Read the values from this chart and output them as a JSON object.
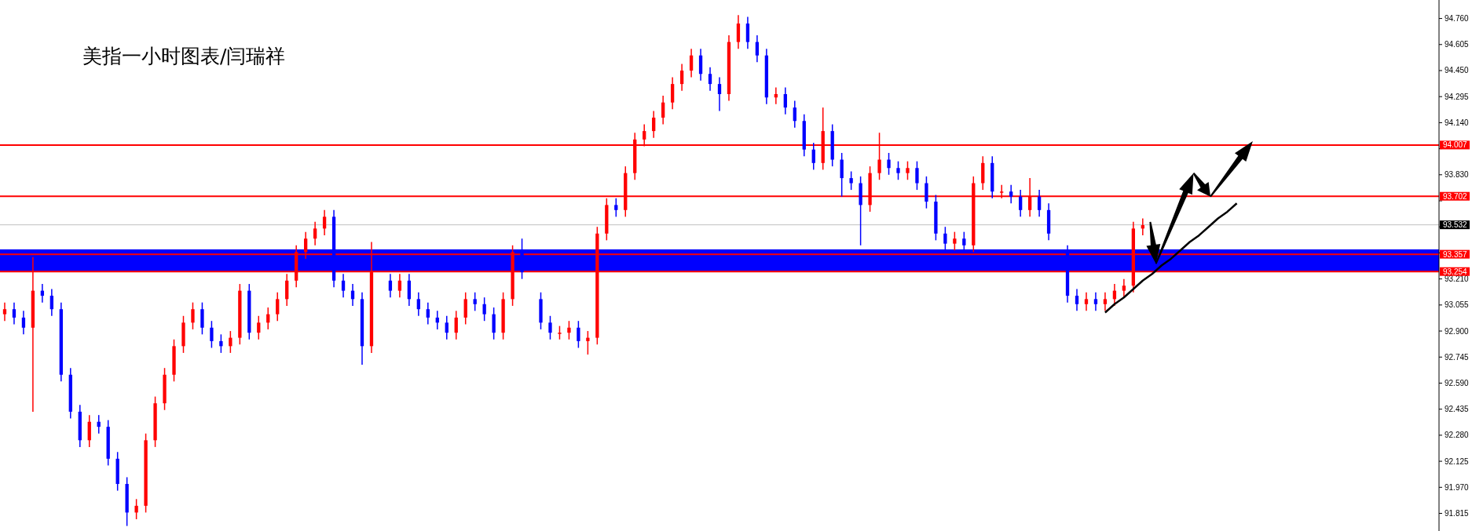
{
  "chart_data": {
    "type": "candlestick",
    "title": "美指一小时图表/闫瑞祥",
    "categories": [
      null,
      null,
      null,
      null,
      null,
      null,
      null,
      null,
      null,
      null,
      null,
      null,
      null,
      null,
      null,
      null,
      null,
      null,
      null,
      null,
      null,
      null,
      null,
      null,
      null,
      null,
      null,
      null,
      null,
      null,
      null,
      null,
      null,
      null,
      null,
      null,
      null,
      null,
      null,
      null,
      null,
      null,
      null,
      null,
      null,
      null,
      null,
      null,
      null,
      null,
      null,
      null,
      null,
      null,
      null,
      null,
      null,
      null,
      null,
      null,
      null,
      null,
      null,
      null,
      null,
      null,
      null,
      null,
      null,
      null,
      null,
      null,
      null,
      null,
      null,
      null,
      null,
      null,
      null,
      null,
      null,
      null,
      null,
      null,
      null,
      null,
      null,
      null,
      null,
      null,
      null,
      null,
      null,
      null,
      null,
      null,
      null,
      null,
      null,
      null,
      null,
      null,
      null,
      null,
      null,
      null,
      null,
      null,
      null,
      null,
      null,
      null,
      null,
      null,
      null,
      null,
      null,
      null,
      null,
      null,
      null,
      null,
      null,
      null,
      null,
      null,
      null,
      null,
      null,
      null,
      null,
      null,
      null,
      null,
      null,
      null,
      null,
      null,
      null,
      null,
      null,
      null,
      null,
      null,
      null,
      null,
      null,
      null,
      null,
      null,
      null,
      null,
      null
    ],
    "ohlc": [
      [
        93.0,
        93.07,
        92.96,
        93.03
      ],
      [
        93.03,
        93.07,
        92.94,
        92.98
      ],
      [
        92.98,
        93.02,
        92.88,
        92.92
      ],
      [
        92.92,
        93.34,
        92.42,
        93.14
      ],
      [
        93.14,
        93.18,
        93.07,
        93.11
      ],
      [
        93.11,
        93.15,
        92.99,
        93.03
      ],
      [
        93.03,
        93.07,
        92.6,
        92.64
      ],
      [
        92.64,
        92.68,
        92.38,
        92.42
      ],
      [
        92.42,
        92.46,
        92.21,
        92.25
      ],
      [
        92.25,
        92.4,
        92.21,
        92.36
      ],
      [
        92.36,
        92.4,
        92.29,
        92.33
      ],
      [
        92.33,
        92.37,
        92.1,
        92.14
      ],
      [
        92.14,
        92.18,
        91.95,
        91.99
      ],
      [
        91.99,
        92.03,
        91.74,
        91.82
      ],
      [
        91.82,
        91.9,
        91.78,
        91.86
      ],
      [
        91.86,
        92.29,
        91.82,
        92.25
      ],
      [
        92.25,
        92.51,
        92.21,
        92.47
      ],
      [
        92.47,
        92.68,
        92.43,
        92.64
      ],
      [
        92.64,
        92.85,
        92.6,
        92.81
      ],
      [
        92.81,
        92.99,
        92.77,
        92.95
      ],
      [
        92.95,
        93.07,
        92.91,
        93.03
      ],
      [
        93.03,
        93.07,
        92.88,
        92.92
      ],
      [
        92.92,
        92.96,
        92.8,
        92.84
      ],
      [
        92.84,
        92.88,
        92.77,
        92.81
      ],
      [
        92.81,
        92.9,
        92.77,
        92.86
      ],
      [
        92.86,
        93.18,
        92.82,
        93.14
      ],
      [
        93.14,
        93.18,
        92.85,
        92.89
      ],
      [
        92.89,
        92.99,
        92.85,
        92.95
      ],
      [
        92.95,
        93.04,
        92.91,
        93.0
      ],
      [
        93.0,
        93.13,
        92.96,
        93.09
      ],
      [
        93.09,
        93.24,
        93.05,
        93.2
      ],
      [
        93.2,
        93.41,
        93.16,
        93.37
      ],
      [
        93.37,
        93.49,
        93.33,
        93.45
      ],
      [
        93.45,
        93.55,
        93.41,
        93.51
      ],
      [
        93.51,
        93.62,
        93.47,
        93.58
      ],
      [
        93.58,
        93.62,
        93.16,
        93.2
      ],
      [
        93.2,
        93.24,
        93.1,
        93.14
      ],
      [
        93.14,
        93.18,
        93.05,
        93.09
      ],
      [
        93.09,
        93.13,
        92.7,
        92.81
      ],
      [
        92.81,
        93.43,
        92.77,
        93.25
      ],
      null,
      [
        93.2,
        93.24,
        93.1,
        93.14
      ],
      [
        93.14,
        93.24,
        93.1,
        93.2
      ],
      [
        93.2,
        93.24,
        93.05,
        93.09
      ],
      [
        93.09,
        93.13,
        92.99,
        93.03
      ],
      [
        93.03,
        93.07,
        92.94,
        92.98
      ],
      [
        92.98,
        93.02,
        92.91,
        92.95
      ],
      [
        92.95,
        92.99,
        92.85,
        92.89
      ],
      [
        92.89,
        93.02,
        92.85,
        92.98
      ],
      [
        92.98,
        93.13,
        92.94,
        93.09
      ],
      [
        93.09,
        93.13,
        93.02,
        93.06
      ],
      [
        93.06,
        93.1,
        92.96,
        93.0
      ],
      [
        93.0,
        93.04,
        92.85,
        92.89
      ],
      [
        92.89,
        93.13,
        92.85,
        93.09
      ],
      [
        93.09,
        93.41,
        93.05,
        93.37
      ],
      [
        93.37,
        93.45,
        93.21,
        93.25
      ],
      null,
      [
        93.09,
        93.13,
        92.91,
        92.95
      ],
      [
        92.95,
        92.99,
        92.85,
        92.89
      ],
      [
        92.89,
        92.93,
        92.85,
        92.89
      ],
      [
        92.89,
        92.96,
        92.85,
        92.92
      ],
      [
        92.92,
        92.96,
        92.8,
        92.84
      ],
      [
        92.84,
        92.9,
        92.76,
        92.86
      ],
      [
        92.86,
        93.52,
        92.82,
        93.48
      ],
      [
        93.48,
        93.69,
        93.44,
        93.65
      ],
      [
        93.65,
        93.69,
        93.58,
        93.62
      ],
      [
        93.62,
        93.88,
        93.58,
        93.84
      ],
      [
        93.84,
        94.08,
        93.8,
        94.04
      ],
      [
        94.04,
        94.13,
        94.0,
        94.09
      ],
      [
        94.09,
        94.21,
        94.05,
        94.17
      ],
      [
        94.17,
        94.3,
        94.13,
        94.26
      ],
      [
        94.26,
        94.41,
        94.22,
        94.37
      ],
      [
        94.37,
        94.49,
        94.33,
        94.45
      ],
      [
        94.45,
        94.58,
        94.41,
        94.54
      ],
      [
        94.54,
        94.58,
        94.39,
        94.43
      ],
      [
        94.43,
        94.47,
        94.33,
        94.37
      ],
      [
        94.37,
        94.41,
        94.21,
        94.31
      ],
      [
        94.31,
        94.66,
        94.27,
        94.62
      ],
      [
        94.62,
        94.78,
        94.58,
        94.73
      ],
      [
        94.73,
        94.77,
        94.58,
        94.62
      ],
      [
        94.62,
        94.66,
        94.5,
        94.54
      ],
      [
        94.54,
        94.58,
        94.25,
        94.29
      ],
      [
        94.29,
        94.35,
        94.25,
        94.31
      ],
      [
        94.31,
        94.35,
        94.19,
        94.23
      ],
      [
        94.23,
        94.27,
        94.11,
        94.15
      ],
      [
        94.15,
        94.19,
        93.94,
        93.98
      ],
      [
        93.98,
        94.02,
        93.86,
        93.9
      ],
      [
        93.9,
        94.23,
        93.86,
        94.09
      ],
      [
        94.09,
        94.13,
        93.88,
        93.92
      ],
      [
        93.92,
        93.96,
        93.7,
        93.81
      ],
      [
        93.81,
        93.85,
        93.74,
        93.78
      ],
      [
        93.78,
        93.82,
        93.41,
        93.65
      ],
      [
        93.65,
        93.88,
        93.61,
        93.84
      ],
      [
        93.84,
        94.08,
        93.8,
        93.92
      ],
      [
        93.92,
        93.96,
        93.83,
        93.87
      ],
      [
        93.87,
        93.91,
        93.8,
        93.84
      ],
      [
        93.84,
        93.91,
        93.8,
        93.87
      ],
      [
        93.87,
        93.91,
        93.74,
        93.78
      ],
      [
        93.78,
        93.82,
        93.63,
        93.67
      ],
      [
        93.67,
        93.71,
        93.44,
        93.48
      ],
      [
        93.48,
        93.52,
        93.38,
        93.42
      ],
      [
        93.42,
        93.49,
        93.38,
        93.45
      ],
      [
        93.45,
        93.49,
        93.37,
        93.41
      ],
      [
        93.41,
        93.82,
        93.37,
        93.78
      ],
      [
        93.78,
        93.94,
        93.74,
        93.9
      ],
      [
        93.9,
        93.94,
        93.69,
        93.73
      ],
      [
        93.73,
        93.77,
        93.69,
        93.73
      ],
      [
        93.73,
        93.77,
        93.66,
        93.7
      ],
      [
        93.7,
        93.74,
        93.58,
        93.62
      ],
      [
        93.62,
        93.81,
        93.58,
        93.7
      ],
      [
        93.7,
        93.74,
        93.58,
        93.62
      ],
      [
        93.62,
        93.66,
        93.44,
        93.48
      ],
      null,
      [
        93.37,
        93.41,
        93.07,
        93.11
      ],
      [
        93.11,
        93.15,
        93.02,
        93.06
      ],
      [
        93.06,
        93.13,
        93.02,
        93.09
      ],
      [
        93.09,
        93.13,
        93.02,
        93.06
      ],
      [
        93.06,
        93.13,
        93.02,
        93.09
      ],
      [
        93.09,
        93.18,
        93.05,
        93.14
      ],
      [
        93.14,
        93.21,
        93.1,
        93.17
      ],
      [
        93.17,
        93.55,
        93.13,
        93.51
      ],
      [
        93.51,
        93.57,
        93.47,
        93.53
      ],
      null,
      null,
      null,
      null,
      null,
      null,
      null,
      null,
      null,
      null,
      null,
      null,
      null,
      null,
      null,
      null,
      null,
      null,
      null,
      null,
      null,
      null,
      null,
      null,
      null,
      null,
      null,
      null,
      null,
      null,
      null
    ],
    "colors": [
      "#ff0000",
      "#0000ff",
      "#0000ff",
      "#ff0000",
      "#0000ff",
      "#0000ff",
      "#0000ff",
      "#0000ff",
      "#0000ff",
      "#ff0000",
      "#0000ff",
      "#0000ff",
      "#0000ff",
      "#0000ff",
      "#ff0000",
      "#ff0000",
      "#ff0000",
      "#ff0000",
      "#ff0000",
      "#ff0000",
      "#ff0000",
      "#0000ff",
      "#0000ff",
      "#0000ff",
      "#ff0000",
      "#ff0000",
      "#0000ff",
      "#ff0000",
      "#ff0000",
      "#ff0000",
      "#ff0000",
      "#ff0000",
      "#ff0000",
      "#ff0000",
      "#ff0000",
      "#0000ff",
      "#0000ff",
      "#0000ff",
      "#0000ff",
      "#ff0000",
      null,
      "#0000ff",
      "#ff0000",
      "#0000ff",
      "#0000ff",
      "#0000ff",
      "#0000ff",
      "#0000ff",
      "#ff0000",
      "#ff0000",
      "#0000ff",
      "#0000ff",
      "#0000ff",
      "#ff0000",
      "#ff0000",
      "#0000ff",
      null,
      "#0000ff",
      "#0000ff",
      "#ff0000",
      "#ff0000",
      "#0000ff",
      "#ff0000",
      "#ff0000",
      "#ff0000",
      "#0000ff",
      "#ff0000",
      "#ff0000",
      "#ff0000",
      "#ff0000",
      "#ff0000",
      "#ff0000",
      "#ff0000",
      "#ff0000",
      "#0000ff",
      "#0000ff",
      "#0000ff",
      "#ff0000",
      "#ff0000",
      "#0000ff",
      "#0000ff",
      "#0000ff",
      "#ff0000",
      "#0000ff",
      "#0000ff",
      "#0000ff",
      "#0000ff",
      "#ff0000",
      "#0000ff",
      "#0000ff",
      "#0000ff",
      "#0000ff",
      "#ff0000",
      "#ff0000",
      "#0000ff",
      "#0000ff",
      "#ff0000",
      "#0000ff",
      "#0000ff",
      "#0000ff",
      "#0000ff",
      "#ff0000",
      "#0000ff",
      "#ff0000",
      "#ff0000",
      "#0000ff",
      "#ff0000",
      "#0000ff",
      "#0000ff",
      "#ff0000",
      "#0000ff",
      "#0000ff",
      null,
      "#0000ff",
      "#0000ff",
      "#ff0000",
      "#0000ff",
      "#ff0000",
      "#ff0000",
      "#ff0000",
      "#ff0000",
      "#ff0000",
      null,
      null,
      null,
      null,
      null,
      null,
      null,
      null,
      null,
      null,
      null,
      null,
      null,
      null,
      null,
      null,
      null,
      null,
      null,
      null,
      null,
      null,
      null,
      null,
      null,
      null,
      null,
      null,
      null,
      null,
      null
    ],
    "series": [
      {
        "type": "line",
        "color": "#000000",
        "values": [
          null,
          null,
          null,
          null,
          null,
          null,
          null,
          null,
          null,
          null,
          null,
          null,
          null,
          null,
          null,
          null,
          null,
          null,
          null,
          null,
          null,
          null,
          null,
          null,
          null,
          null,
          null,
          null,
          null,
          null,
          null,
          null,
          null,
          null,
          null,
          null,
          null,
          null,
          null,
          null,
          null,
          null,
          null,
          null,
          null,
          null,
          null,
          null,
          null,
          null,
          null,
          null,
          null,
          null,
          null,
          null,
          null,
          null,
          null,
          null,
          null,
          null,
          null,
          null,
          null,
          null,
          null,
          null,
          null,
          null,
          null,
          null,
          null,
          null,
          null,
          null,
          null,
          null,
          null,
          null,
          null,
          null,
          null,
          null,
          null,
          null,
          null,
          null,
          null,
          null,
          null,
          null,
          null,
          null,
          null,
          null,
          null,
          null,
          null,
          null,
          null,
          null,
          null,
          null,
          null,
          null,
          null,
          null,
          null,
          null,
          null,
          null,
          null,
          null,
          null,
          null,
          null,
          93.01,
          93.06,
          93.1,
          93.15,
          93.2,
          93.24,
          93.29,
          93.33,
          93.38,
          93.43,
          93.47,
          93.52,
          93.57,
          93.61,
          93.66,
          null,
          null,
          null,
          null,
          null,
          null,
          null,
          null,
          null,
          null,
          null,
          null,
          null,
          null,
          null,
          null,
          null,
          null,
          null,
          null,
          null
        ]
      }
    ],
    "ylim": [
      91.71,
      94.87
    ],
    "yticks": [
      {
        "value": 91.815,
        "label": "91.815"
      },
      {
        "value": 91.97,
        "label": "91.970"
      },
      {
        "value": 92.125,
        "label": "92.125"
      },
      {
        "value": 92.28,
        "label": "92.280"
      },
      {
        "value": 92.435,
        "label": "92.435"
      },
      {
        "value": 92.59,
        "label": "92.590"
      },
      {
        "value": 92.745,
        "label": "92.745"
      },
      {
        "value": 92.9,
        "label": "92.900"
      },
      {
        "value": 93.055,
        "label": "93.055"
      },
      {
        "value": 93.21,
        "label": "93.210"
      },
      {
        "value": 93.365,
        "label": null
      },
      {
        "value": 93.52,
        "label": null
      },
      {
        "value": 93.675,
        "label": null
      },
      {
        "value": 93.83,
        "label": "93.830"
      },
      {
        "value": 93.985,
        "label": null
      },
      {
        "value": 94.14,
        "label": "94.140"
      },
      {
        "value": 94.295,
        "label": "94.295"
      },
      {
        "value": 94.45,
        "label": "94.450"
      },
      {
        "value": 94.605,
        "label": "94.605"
      },
      {
        "value": 94.76,
        "label": "94.760"
      }
    ],
    "tick_labels": "y",
    "bands": [
      {
        "axis": "y",
        "from": 93.254,
        "to": 93.386,
        "color": "#0000ff"
      }
    ],
    "ref_lines": [
      {
        "axis": "y",
        "value": 94.007,
        "label": "94.007",
        "color": "#ff0000"
      },
      {
        "axis": "y",
        "value": 93.702,
        "label": "93.702",
        "color": "#ff0000"
      },
      {
        "axis": "y",
        "value": 93.532,
        "label": "93.532",
        "color": "#c0c0c0"
      },
      {
        "axis": "y",
        "value": 93.357,
        "label": "93.357",
        "color": "#ff0000"
      },
      {
        "axis": "y",
        "value": 93.254,
        "label": "93.254",
        "color": "#ff0000"
      }
    ]
  }
}
